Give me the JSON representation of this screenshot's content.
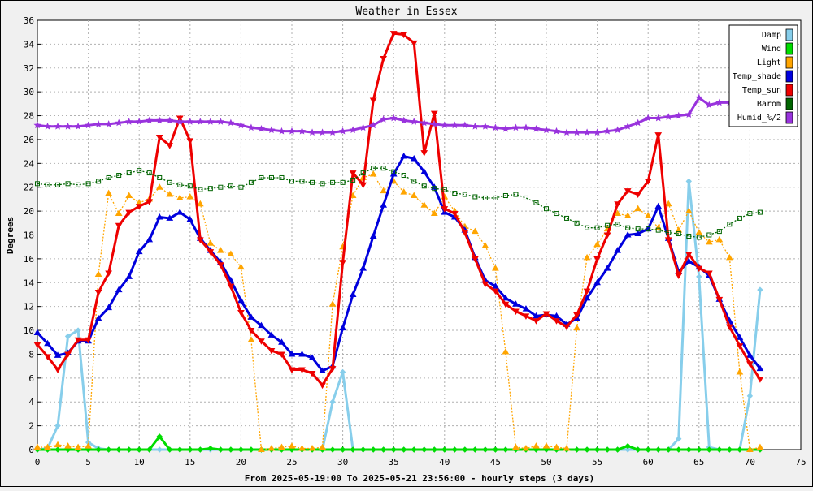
{
  "chart_data": {
    "type": "line",
    "title": "Weather in Essex",
    "ylabel": "Degrees",
    "xlabel": "From 2025-05-19:00 To 2025-05-21 23:56:00 - hourly steps (3 days)",
    "xlim": [
      0,
      75
    ],
    "ylim": [
      0,
      36
    ],
    "x_ticks": [
      "0",
      "5",
      "10",
      "15",
      "20",
      "25",
      "30",
      "35",
      "40",
      "45",
      "50",
      "55",
      "60",
      "65",
      "70",
      "75"
    ],
    "y_ticks": [
      "0",
      "2",
      "4",
      "6",
      "8",
      "10",
      "12",
      "14",
      "16",
      "18",
      "20",
      "22",
      "24",
      "26",
      "28",
      "30",
      "32",
      "34",
      "36"
    ],
    "grid": true,
    "legend_position": "top-right",
    "background": "#ffffff",
    "frame_background": "#f0f0f0",
    "series": [
      {
        "name": "Damp",
        "color": "#87ceeb",
        "marker": "diamond",
        "dash": "",
        "values": [
          0,
          0.1,
          2,
          9.5,
          10,
          0.6,
          0.1,
          0,
          0,
          0,
          0,
          0,
          0,
          0,
          0,
          0,
          0,
          0,
          0,
          0,
          0,
          0,
          0,
          0,
          0,
          0,
          0,
          0,
          0,
          4,
          6.5,
          0,
          0,
          0,
          0,
          0,
          0,
          0,
          0,
          0,
          0,
          0,
          0,
          0,
          0,
          0,
          0,
          0,
          0,
          0,
          0,
          0,
          0,
          0,
          0,
          0,
          0,
          0,
          0,
          0,
          0,
          0,
          0,
          0.9,
          22.5,
          14.5,
          0.2,
          0,
          0,
          0,
          4.5,
          13.4
        ]
      },
      {
        "name": "Wind",
        "color": "#00dd00",
        "marker": "diamond",
        "dash": "",
        "values": [
          0,
          0,
          0,
          0,
          0,
          0,
          0,
          0,
          0,
          0,
          0,
          0,
          1.1,
          0,
          0,
          0,
          0,
          0.1,
          0,
          0,
          0,
          0,
          0,
          0,
          0,
          0,
          0,
          0,
          0,
          0,
          0,
          0,
          0,
          0,
          0,
          0,
          0,
          0,
          0,
          0,
          0,
          0,
          0,
          0,
          0,
          0,
          0,
          0,
          0,
          0,
          0,
          0,
          0,
          0,
          0,
          0,
          0,
          0,
          0.3,
          0,
          0,
          0,
          0,
          0,
          0,
          0,
          0,
          0,
          0,
          0,
          0,
          0
        ]
      },
      {
        "name": "Light",
        "color": "#ffa500",
        "marker": "triangle",
        "dash": "2,2",
        "values": [
          0.2,
          0.2,
          0.4,
          0.3,
          0.2,
          0.3,
          14.7,
          21.5,
          19.8,
          21.3,
          20.7,
          21,
          22,
          21.4,
          21.1,
          21.2,
          20.6,
          17.3,
          16.7,
          16.4,
          15.3,
          9.2,
          0,
          0.1,
          0.2,
          0.3,
          0.1,
          0.1,
          0.2,
          12.2,
          17,
          21.3,
          22.8,
          23.1,
          21.7,
          22.5,
          21.6,
          21.3,
          20.5,
          19.8,
          21.2,
          20,
          18.7,
          18.3,
          17.1,
          15.2,
          8.2,
          0.2,
          0.1,
          0.3,
          0.3,
          0.2,
          0.1,
          10.2,
          16.1,
          17.2,
          18.5,
          19.8,
          19.6,
          20.2,
          19.6,
          18.6,
          20.6,
          18.4,
          20,
          18.2,
          17.4,
          17.6,
          16.1,
          6.5,
          0,
          0.2
        ]
      },
      {
        "name": "Temp_shade",
        "color": "#0000dd",
        "marker": "triangle",
        "dash": "",
        "values": [
          9.8,
          8.9,
          7.9,
          8.1,
          9.1,
          9.1,
          11,
          11.9,
          13.4,
          14.5,
          16.6,
          17.6,
          19.5,
          19.4,
          19.9,
          19.3,
          17.7,
          16.7,
          15.7,
          14.2,
          12.5,
          11.1,
          10.4,
          9.6,
          9,
          8,
          8,
          7.7,
          6.6,
          7,
          10.2,
          13,
          15.2,
          17.9,
          20.5,
          23.1,
          24.6,
          24.4,
          23.3,
          22,
          19.9,
          19.5,
          18.4,
          16.1,
          14.2,
          13.7,
          12.7,
          12.2,
          11.8,
          11.2,
          11.3,
          11.2,
          10.5,
          11,
          12.7,
          14,
          15.2,
          16.7,
          18,
          18.1,
          18.5,
          20.4,
          17.7,
          14.9,
          15.8,
          15.3,
          14.6,
          12.6,
          10.8,
          9.4,
          7.9,
          6.8
        ]
      },
      {
        "name": "Temp_sun",
        "color": "#ee0000",
        "marker": "triangle_down",
        "dash": "",
        "values": [
          8.8,
          7.8,
          6.7,
          8,
          9.2,
          9.2,
          13.2,
          14.8,
          18.8,
          19.9,
          20.4,
          20.8,
          26.2,
          25.5,
          27.8,
          25.9,
          17.6,
          16.6,
          15.5,
          13.7,
          11.5,
          10,
          9.1,
          8.3,
          8,
          6.7,
          6.7,
          6.4,
          5.4,
          6.8,
          15.7,
          23.2,
          22.2,
          29.3,
          32.8,
          34.9,
          34.8,
          34.1,
          24.9,
          28.2,
          20.2,
          19.8,
          18.2,
          16,
          13.9,
          13.3,
          12.2,
          11.6,
          11.2,
          10.8,
          11.4,
          10.8,
          10.3,
          11.3,
          13.3,
          16,
          18,
          20.6,
          21.7,
          21.4,
          22.5,
          26.4,
          17.6,
          14.6,
          16.4,
          15.2,
          14.8,
          12.6,
          10.3,
          8.7,
          7.2,
          5.9
        ]
      },
      {
        "name": "Barom",
        "color": "#006400",
        "marker": "square",
        "dash": "2,2",
        "values": [
          22.3,
          22.2,
          22.2,
          22.3,
          22.2,
          22.3,
          22.5,
          22.8,
          23,
          23.2,
          23.4,
          23.2,
          22.8,
          22.4,
          22.2,
          22.1,
          21.8,
          21.9,
          22,
          22.1,
          22,
          22.4,
          22.8,
          22.8,
          22.8,
          22.5,
          22.5,
          22.4,
          22.3,
          22.4,
          22.4,
          22.6,
          23.2,
          23.6,
          23.6,
          23.3,
          23,
          22.5,
          22.1,
          21.9,
          21.8,
          21.5,
          21.4,
          21.2,
          21.1,
          21.1,
          21.3,
          21.4,
          21.1,
          20.7,
          20.2,
          19.8,
          19.4,
          19,
          18.6,
          18.6,
          18.8,
          18.9,
          18.6,
          18.5,
          18.5,
          18.4,
          18.2,
          18.1,
          17.9,
          17.8,
          18,
          18.3,
          18.9,
          19.4,
          19.8,
          19.9
        ]
      },
      {
        "name": "Humid_%/2",
        "color": "#9933dd",
        "marker": "star",
        "dash": "",
        "values": [
          27.2,
          27.1,
          27.1,
          27.1,
          27.1,
          27.2,
          27.3,
          27.3,
          27.4,
          27.5,
          27.5,
          27.6,
          27.6,
          27.6,
          27.5,
          27.5,
          27.5,
          27.5,
          27.5,
          27.4,
          27.2,
          27,
          26.9,
          26.8,
          26.7,
          26.7,
          26.7,
          26.6,
          26.6,
          26.6,
          26.7,
          26.8,
          27,
          27.2,
          27.7,
          27.8,
          27.6,
          27.5,
          27.4,
          27.3,
          27.2,
          27.2,
          27.2,
          27.1,
          27.1,
          27,
          26.9,
          27,
          27,
          26.9,
          26.8,
          26.7,
          26.6,
          26.6,
          26.6,
          26.6,
          26.7,
          26.8,
          27.1,
          27.4,
          27.8,
          27.8,
          27.9,
          28,
          28.1,
          29.5,
          28.9,
          29.1,
          29.1,
          null,
          null,
          null
        ]
      }
    ]
  }
}
